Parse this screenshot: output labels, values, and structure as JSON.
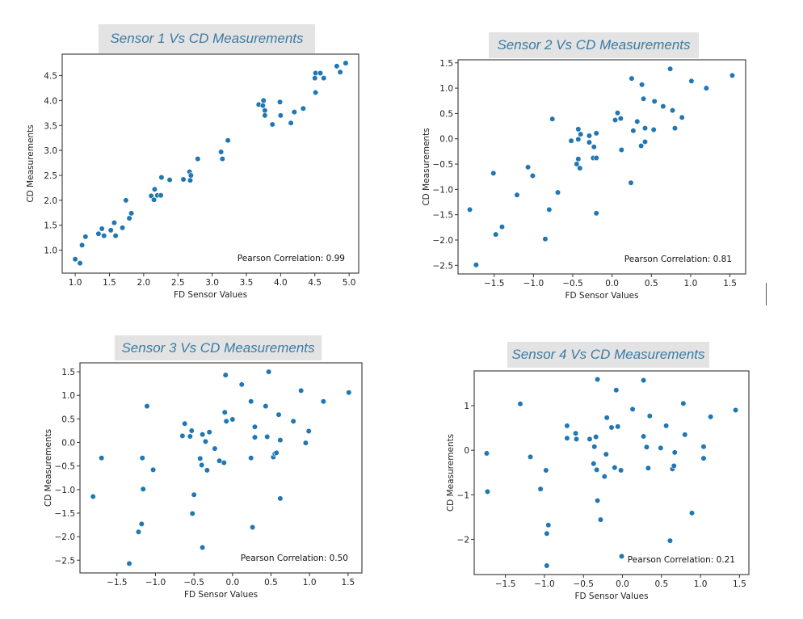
{
  "colors": {
    "point": "#1f77b4",
    "title_text": "#3a7ba4",
    "title_bg": "#e3e3e3",
    "frame": "#444444"
  },
  "chart_data": [
    {
      "type": "scatter",
      "title": "Sensor 1 Vs CD Measurements",
      "xlabel": "FD Sensor Values",
      "ylabel": "CD Measurements",
      "annotation": "Pearson Correlation: 0.99",
      "xlim": [
        0.81,
        5.14
      ],
      "ylim": [
        0.54,
        4.93
      ],
      "xticks": [
        1.0,
        1.5,
        2.0,
        2.5,
        3.0,
        3.5,
        4.0,
        4.5,
        5.0
      ],
      "xtick_labels": [
        "1.0",
        "1.5",
        "2.0",
        "2.5",
        "3.0",
        "3.5",
        "4.0",
        "4.5",
        "5.0"
      ],
      "yticks": [
        1.0,
        1.5,
        2.0,
        2.5,
        3.0,
        3.5,
        4.0,
        4.5
      ],
      "ytick_labels": [
        "1.0",
        "1.5",
        "2.0",
        "2.5",
        "3.0",
        "3.5",
        "4.0",
        "4.5"
      ],
      "grid": false,
      "points": [
        [
          1.0,
          0.82
        ],
        [
          1.07,
          0.74
        ],
        [
          1.1,
          1.1
        ],
        [
          1.15,
          1.27
        ],
        [
          1.34,
          1.33
        ],
        [
          1.39,
          1.43
        ],
        [
          1.42,
          1.29
        ],
        [
          1.52,
          1.4
        ],
        [
          1.57,
          1.55
        ],
        [
          1.59,
          1.29
        ],
        [
          1.69,
          1.45
        ],
        [
          1.74,
          2.0
        ],
        [
          1.79,
          1.64
        ],
        [
          1.82,
          1.74
        ],
        [
          2.11,
          2.09
        ],
        [
          2.15,
          2.01
        ],
        [
          2.16,
          2.22
        ],
        [
          2.2,
          2.1
        ],
        [
          2.25,
          2.1
        ],
        [
          2.26,
          2.46
        ],
        [
          2.38,
          2.41
        ],
        [
          2.58,
          2.42
        ],
        [
          2.67,
          2.57
        ],
        [
          2.68,
          2.4
        ],
        [
          2.69,
          2.5
        ],
        [
          2.79,
          2.83
        ],
        [
          3.13,
          2.97
        ],
        [
          3.15,
          2.83
        ],
        [
          3.23,
          3.2
        ],
        [
          3.68,
          3.92
        ],
        [
          3.74,
          3.9
        ],
        [
          3.75,
          4.0
        ],
        [
          3.77,
          3.8
        ],
        [
          3.77,
          3.7
        ],
        [
          3.88,
          3.52
        ],
        [
          3.99,
          3.97
        ],
        [
          4.0,
          3.7
        ],
        [
          4.15,
          3.55
        ],
        [
          4.2,
          3.77
        ],
        [
          4.33,
          3.84
        ],
        [
          4.5,
          4.45
        ],
        [
          4.51,
          4.55
        ],
        [
          4.51,
          4.16
        ],
        [
          4.58,
          4.55
        ],
        [
          4.63,
          4.45
        ],
        [
          4.82,
          4.69
        ],
        [
          4.87,
          4.57
        ],
        [
          4.95,
          4.75
        ]
      ]
    },
    {
      "type": "scatter",
      "title": "Sensor 2 Vs CD Measurements",
      "xlabel": "FD Sensor Values",
      "ylabel": "CD Measurements",
      "annotation": "Pearson Correlation: 0.81",
      "xlim": [
        -1.96,
        1.7
      ],
      "ylim": [
        -2.67,
        1.56
      ],
      "xticks": [
        -1.5,
        -1.0,
        -0.5,
        0.0,
        0.5,
        1.0,
        1.5
      ],
      "xtick_labels": [
        "−1.5",
        "−1.0",
        "−0.5",
        "0.0",
        "0.5",
        "1.0",
        "1.5"
      ],
      "yticks": [
        -2.5,
        -2.0,
        -1.5,
        -1.0,
        -0.5,
        0.0,
        0.5,
        1.0,
        1.5
      ],
      "ytick_labels": [
        "−2.5",
        "−2.0",
        "−1.5",
        "−1.0",
        "−0.5",
        "0.0",
        "0.5",
        "1.0",
        "1.5"
      ],
      "grid": false,
      "points": [
        [
          -1.81,
          -1.4
        ],
        [
          -1.73,
          -2.49
        ],
        [
          -1.51,
          -0.68
        ],
        [
          -1.48,
          -1.89
        ],
        [
          -1.4,
          -1.74
        ],
        [
          -1.21,
          -1.11
        ],
        [
          -1.07,
          -0.56
        ],
        [
          -1.01,
          -0.73
        ],
        [
          -0.85,
          -1.98
        ],
        [
          -0.8,
          -1.4
        ],
        [
          -0.76,
          0.39
        ],
        [
          -0.69,
          -1.06
        ],
        [
          -0.52,
          -0.04
        ],
        [
          -0.45,
          -0.5
        ],
        [
          -0.43,
          -0.4
        ],
        [
          -0.43,
          -0.01
        ],
        [
          -0.43,
          0.19
        ],
        [
          -0.41,
          -0.58
        ],
        [
          -0.4,
          0.09
        ],
        [
          -0.29,
          -0.07
        ],
        [
          -0.29,
          0.06
        ],
        [
          -0.24,
          -0.38
        ],
        [
          -0.23,
          -0.16
        ],
        [
          -0.2,
          0.11
        ],
        [
          -0.2,
          -1.47
        ],
        [
          -0.2,
          -0.38
        ],
        [
          0.04,
          0.37
        ],
        [
          0.07,
          0.51
        ],
        [
          0.11,
          0.4
        ],
        [
          0.12,
          -0.22
        ],
        [
          0.24,
          -0.87
        ],
        [
          0.25,
          1.19
        ],
        [
          0.27,
          0.16
        ],
        [
          0.32,
          0.34
        ],
        [
          0.37,
          -0.14
        ],
        [
          0.38,
          1.07
        ],
        [
          0.4,
          0.79
        ],
        [
          0.42,
          0.21
        ],
        [
          0.42,
          -0.06
        ],
        [
          0.53,
          0.18
        ],
        [
          0.54,
          0.74
        ],
        [
          0.65,
          0.64
        ],
        [
          0.74,
          1.38
        ],
        [
          0.77,
          0.56
        ],
        [
          0.8,
          0.21
        ],
        [
          0.89,
          0.42
        ],
        [
          1.01,
          1.14
        ],
        [
          1.2,
          1.0
        ],
        [
          1.53,
          1.25
        ]
      ]
    },
    {
      "type": "scatter",
      "title": "Sensor 3 Vs CD Measurements",
      "xlabel": "FD Sensor Values",
      "ylabel": "CD Measurements",
      "annotation": "Pearson Correlation: 0.50",
      "xlim": [
        -1.98,
        1.68
      ],
      "ylim": [
        -2.77,
        1.69
      ],
      "xticks": [
        -1.5,
        -1.0,
        -0.5,
        0.0,
        0.5,
        1.0,
        1.5
      ],
      "xtick_labels": [
        "−1.5",
        "−1.0",
        "−0.5",
        "0.0",
        "0.5",
        "1.0",
        "1.5"
      ],
      "yticks": [
        -2.5,
        -2.0,
        -1.5,
        -1.0,
        -0.5,
        0.0,
        0.5,
        1.0,
        1.5
      ],
      "ytick_labels": [
        "−2.5",
        "−2.0",
        "−1.5",
        "−1.0",
        "−0.5",
        "0.0",
        "0.5",
        "1.0",
        "1.5"
      ],
      "grid": false,
      "points": [
        [
          -1.81,
          -1.15
        ],
        [
          -1.7,
          -0.33
        ],
        [
          -1.34,
          -2.57
        ],
        [
          -1.22,
          -1.9
        ],
        [
          -1.18,
          -1.73
        ],
        [
          -1.17,
          -0.33
        ],
        [
          -1.16,
          -0.99
        ],
        [
          -1.11,
          0.77
        ],
        [
          -1.03,
          -0.58
        ],
        [
          -0.65,
          0.14
        ],
        [
          -0.62,
          0.4
        ],
        [
          -0.55,
          0.13
        ],
        [
          -0.53,
          0.25
        ],
        [
          -0.52,
          -1.51
        ],
        [
          -0.5,
          -1.11
        ],
        [
          -0.42,
          -0.34
        ],
        [
          -0.4,
          -0.48
        ],
        [
          -0.39,
          0.17
        ],
        [
          -0.39,
          -2.23
        ],
        [
          -0.35,
          0.02
        ],
        [
          -0.33,
          -0.59
        ],
        [
          -0.3,
          0.22
        ],
        [
          -0.23,
          -0.13
        ],
        [
          -0.17,
          -0.39
        ],
        [
          -0.11,
          -0.43
        ],
        [
          -0.1,
          0.64
        ],
        [
          -0.09,
          1.43
        ],
        [
          -0.08,
          0.45
        ],
        [
          0.0,
          0.49
        ],
        [
          0.12,
          1.23
        ],
        [
          0.24,
          0.87
        ],
        [
          0.24,
          -0.33
        ],
        [
          0.26,
          -1.8
        ],
        [
          0.29,
          0.33
        ],
        [
          0.29,
          0.11
        ],
        [
          0.43,
          0.77
        ],
        [
          0.45,
          0.12
        ],
        [
          0.47,
          1.5
        ],
        [
          0.53,
          -0.31
        ],
        [
          0.55,
          -0.24
        ],
        [
          0.57,
          -0.22
        ],
        [
          0.6,
          0.59
        ],
        [
          0.62,
          0.05
        ],
        [
          0.62,
          -1.19
        ],
        [
          0.79,
          0.45
        ],
        [
          0.89,
          1.1
        ],
        [
          0.95,
          -0.01
        ],
        [
          0.99,
          0.24
        ],
        [
          1.18,
          0.87
        ],
        [
          1.51,
          1.06
        ]
      ]
    },
    {
      "type": "scatter",
      "title": "Sensor 4 Vs CD Measurements",
      "xlabel": "FD Sensor Values",
      "ylabel": "CD Measurements",
      "annotation": "Pearson Correlation: 0.21",
      "xlim": [
        -1.9,
        1.62
      ],
      "ylim": [
        -2.79,
        1.78
      ],
      "xticks": [
        -1.5,
        -1.0,
        -0.5,
        0.0,
        0.5,
        1.0,
        1.5
      ],
      "xtick_labels": [
        "−1.5",
        "−1.0",
        "−0.5",
        "0.0",
        "0.5",
        "1.0",
        "1.5"
      ],
      "yticks": [
        -2,
        -1,
        0,
        1
      ],
      "ytick_labels": [
        "−2",
        "−1",
        "0",
        "1"
      ],
      "grid": false,
      "points": [
        [
          -1.74,
          -0.07
        ],
        [
          -1.73,
          -0.93
        ],
        [
          -1.31,
          1.04
        ],
        [
          -1.18,
          -0.15
        ],
        [
          -1.05,
          -0.87
        ],
        [
          -0.98,
          -0.45
        ],
        [
          -0.97,
          -1.87
        ],
        [
          -0.97,
          -2.59
        ],
        [
          -0.95,
          -1.68
        ],
        [
          -0.71,
          0.55
        ],
        [
          -0.71,
          0.27
        ],
        [
          -0.6,
          0.38
        ],
        [
          -0.59,
          0.25
        ],
        [
          -0.42,
          0.25
        ],
        [
          -0.37,
          -0.3
        ],
        [
          -0.36,
          0.08
        ],
        [
          -0.34,
          0.3
        ],
        [
          -0.33,
          -0.44
        ],
        [
          -0.32,
          1.59
        ],
        [
          -0.32,
          -1.13
        ],
        [
          -0.28,
          -1.56
        ],
        [
          -0.23,
          -0.59
        ],
        [
          -0.21,
          -0.09
        ],
        [
          -0.2,
          0.73
        ],
        [
          -0.14,
          0.51
        ],
        [
          -0.1,
          -0.39
        ],
        [
          -0.08,
          1.35
        ],
        [
          -0.06,
          0.53
        ],
        [
          -0.02,
          -0.45
        ],
        [
          -0.01,
          -2.38
        ],
        [
          0.13,
          0.92
        ],
        [
          0.27,
          1.57
        ],
        [
          0.27,
          0.31
        ],
        [
          0.31,
          0.07
        ],
        [
          0.33,
          -0.4
        ],
        [
          0.35,
          0.77
        ],
        [
          0.49,
          0.05
        ],
        [
          0.56,
          0.55
        ],
        [
          0.61,
          -2.03
        ],
        [
          0.64,
          -0.42
        ],
        [
          0.66,
          -0.35
        ],
        [
          0.67,
          -0.05
        ],
        [
          0.78,
          1.05
        ],
        [
          0.8,
          0.35
        ],
        [
          0.89,
          -1.41
        ],
        [
          1.04,
          0.08
        ],
        [
          1.04,
          -0.18
        ],
        [
          1.13,
          0.75
        ],
        [
          1.45,
          0.9
        ]
      ]
    }
  ]
}
